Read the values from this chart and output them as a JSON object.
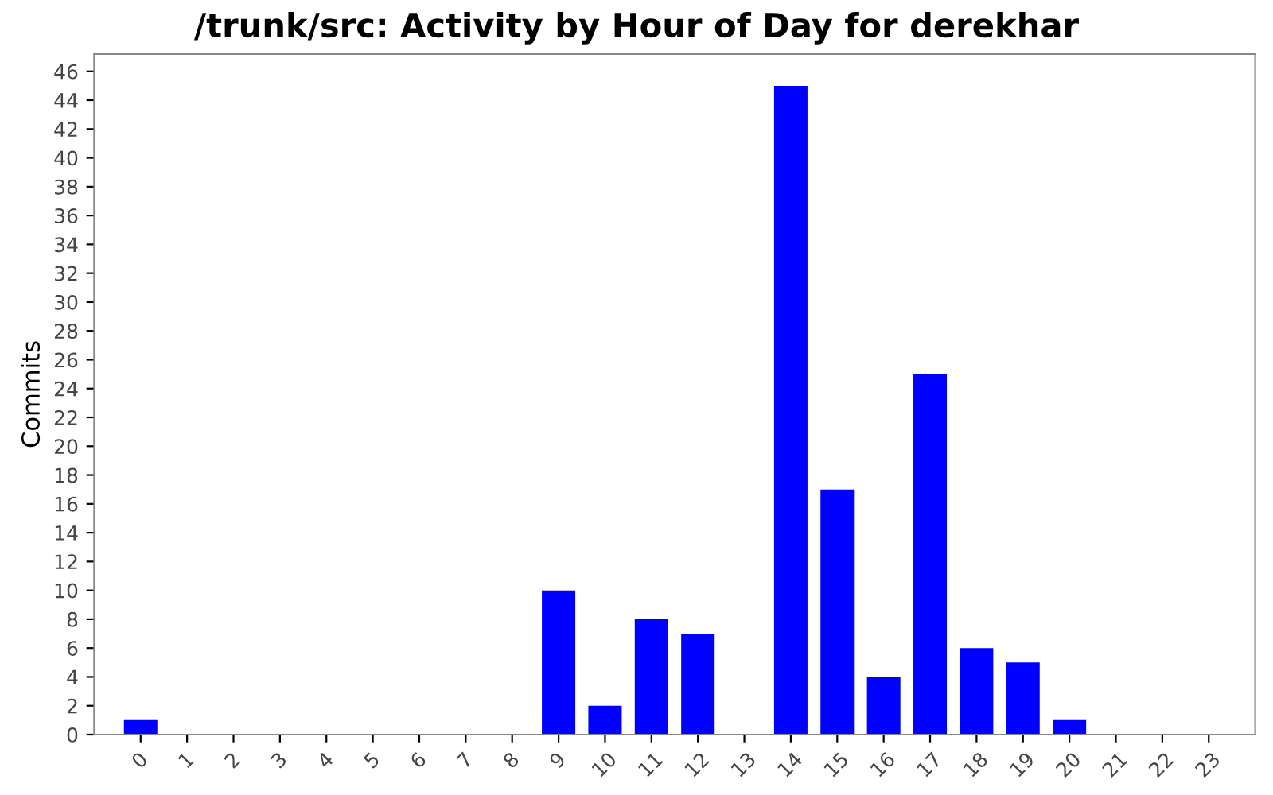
{
  "chart_data": {
    "type": "bar",
    "title": "/trunk/src: Activity by Hour of Day for derekhar",
    "ylabel": "Commits",
    "categories": [
      "0",
      "1",
      "2",
      "3",
      "4",
      "5",
      "6",
      "7",
      "8",
      "9",
      "10",
      "11",
      "12",
      "13",
      "14",
      "15",
      "16",
      "17",
      "18",
      "19",
      "20",
      "21",
      "22",
      "23"
    ],
    "values": [
      1,
      0,
      0,
      0,
      0,
      0,
      0,
      0,
      0,
      10,
      2,
      8,
      7,
      0,
      45,
      17,
      4,
      25,
      6,
      5,
      1,
      0,
      0,
      0
    ],
    "color": "#0000ff",
    "ylim": [
      0,
      47.2
    ],
    "yticks": [
      0,
      2,
      4,
      6,
      8,
      10,
      12,
      14,
      16,
      18,
      20,
      22,
      24,
      26,
      28,
      30,
      32,
      34,
      36,
      38,
      40,
      42,
      44,
      46
    ],
    "grid": false,
    "legend": false
  }
}
